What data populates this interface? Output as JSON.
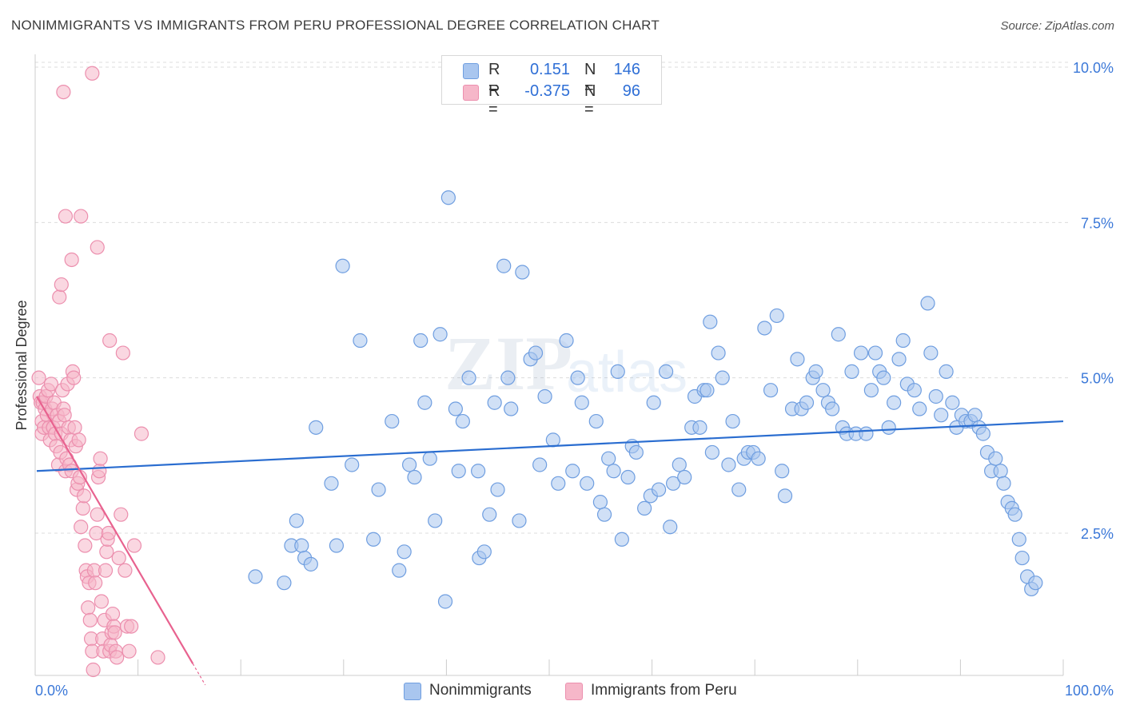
{
  "header": {
    "title": "NONIMMIGRANTS VS IMMIGRANTS FROM PERU PROFESSIONAL DEGREE CORRELATION CHART",
    "source": "Source: ZipAtlas.com"
  },
  "legend": {
    "rows": [
      {
        "swatch": "#a9c6ef",
        "r_label": "R =",
        "r_value": "0.151",
        "n_label": "N =",
        "n_value": "146"
      },
      {
        "swatch": "#f6b7c9",
        "r_label": "R =",
        "r_value": "-0.375",
        "n_label": "N =",
        "n_value": "96"
      }
    ]
  },
  "bottom_legend": {
    "items": [
      {
        "label": "Nonimmigrants",
        "color": "#a9c6ef"
      },
      {
        "label": "Immigrants from Peru",
        "color": "#f6b7c9"
      }
    ]
  },
  "colors": {
    "blue_fill": "#a9c6ef",
    "blue_stroke": "#6f9ee0",
    "blue_line": "#2a6dd0",
    "pink_fill": "#f6b7c9",
    "pink_stroke": "#ec8fae",
    "pink_line": "#e8628f",
    "tick_text": "#3b78d8",
    "grid": "#dcdcdc"
  },
  "chart_data": {
    "type": "scatter",
    "title": "NONIMMIGRANTS VS IMMIGRANTS FROM PERU PROFESSIONAL DEGREE CORRELATION CHART",
    "xlabel": "",
    "ylabel": "Professional Degree",
    "xlim": [
      0,
      100
    ],
    "ylim": [
      0,
      10
    ],
    "x_tick_labels": [
      "0.0%",
      "100.0%"
    ],
    "y_ticks": [
      2.5,
      5.0,
      7.5,
      10.0
    ],
    "y_tick_labels": [
      "2.5%",
      "5.0%",
      "7.5%",
      "10.0%"
    ],
    "grid": true,
    "legend_position": "bottom",
    "series": [
      {
        "name": "Nonimmigrants",
        "trend": {
          "x": [
            0,
            100
          ],
          "y": [
            3.5,
            4.3
          ]
        },
        "points": [
          [
            21.3,
            1.8
          ],
          [
            24.1,
            1.7
          ],
          [
            24.8,
            2.3
          ],
          [
            25.3,
            2.7
          ],
          [
            25.8,
            2.3
          ],
          [
            26.1,
            2.1
          ],
          [
            26.7,
            2.0
          ],
          [
            27.2,
            4.2
          ],
          [
            28.7,
            3.3
          ],
          [
            29.2,
            2.3
          ],
          [
            29.8,
            6.8
          ],
          [
            30.7,
            3.6
          ],
          [
            31.5,
            5.6
          ],
          [
            32.8,
            2.4
          ],
          [
            33.3,
            3.2
          ],
          [
            34.6,
            4.3
          ],
          [
            35.3,
            1.9
          ],
          [
            35.8,
            2.2
          ],
          [
            36.3,
            3.6
          ],
          [
            36.8,
            3.4
          ],
          [
            37.4,
            5.6
          ],
          [
            37.8,
            4.6
          ],
          [
            38.3,
            3.7
          ],
          [
            38.8,
            2.7
          ],
          [
            39.3,
            5.7
          ],
          [
            39.8,
            1.4
          ],
          [
            40.1,
            7.9
          ],
          [
            40.8,
            4.5
          ],
          [
            41.1,
            3.5
          ],
          [
            41.5,
            4.3
          ],
          [
            42.1,
            5.0
          ],
          [
            43.1,
            2.1
          ],
          [
            43.6,
            2.2
          ],
          [
            44.1,
            2.8
          ],
          [
            44.6,
            4.6
          ],
          [
            44.9,
            3.2
          ],
          [
            45.5,
            6.8
          ],
          [
            45.9,
            5.0
          ],
          [
            46.2,
            4.5
          ],
          [
            47.0,
            2.7
          ],
          [
            47.3,
            6.7
          ],
          [
            48.1,
            5.3
          ],
          [
            48.6,
            5.4
          ],
          [
            49.0,
            3.6
          ],
          [
            49.5,
            4.7
          ],
          [
            50.3,
            4.0
          ],
          [
            50.8,
            3.3
          ],
          [
            51.6,
            5.6
          ],
          [
            52.2,
            3.5
          ],
          [
            52.7,
            5.0
          ],
          [
            53.1,
            4.6
          ],
          [
            53.6,
            3.3
          ],
          [
            54.5,
            4.3
          ],
          [
            54.9,
            3.0
          ],
          [
            55.3,
            2.8
          ],
          [
            55.7,
            3.7
          ],
          [
            56.2,
            3.5
          ],
          [
            56.6,
            5.1
          ],
          [
            57.0,
            2.4
          ],
          [
            57.6,
            3.4
          ],
          [
            58.0,
            3.9
          ],
          [
            58.4,
            3.8
          ],
          [
            59.2,
            2.9
          ],
          [
            59.8,
            3.1
          ],
          [
            60.1,
            4.6
          ],
          [
            60.6,
            3.2
          ],
          [
            61.3,
            5.1
          ],
          [
            61.7,
            2.6
          ],
          [
            62.0,
            3.3
          ],
          [
            62.6,
            3.6
          ],
          [
            63.1,
            3.4
          ],
          [
            63.8,
            4.2
          ],
          [
            64.1,
            4.7
          ],
          [
            64.6,
            4.2
          ],
          [
            65.0,
            4.8
          ],
          [
            65.3,
            4.8
          ],
          [
            65.8,
            3.8
          ],
          [
            66.4,
            5.4
          ],
          [
            66.8,
            5.0
          ],
          [
            67.4,
            3.6
          ],
          [
            67.8,
            4.3
          ],
          [
            68.4,
            3.2
          ],
          [
            68.9,
            3.7
          ],
          [
            69.3,
            3.8
          ],
          [
            69.8,
            3.8
          ],
          [
            70.3,
            3.7
          ],
          [
            70.9,
            5.8
          ],
          [
            71.5,
            4.8
          ],
          [
            72.1,
            6.0
          ],
          [
            72.6,
            3.5
          ],
          [
            72.9,
            3.1
          ],
          [
            73.6,
            4.5
          ],
          [
            74.1,
            5.3
          ],
          [
            74.5,
            4.5
          ],
          [
            75.0,
            4.6
          ],
          [
            75.6,
            5.0
          ],
          [
            75.9,
            5.1
          ],
          [
            76.6,
            4.8
          ],
          [
            77.1,
            4.6
          ],
          [
            77.5,
            4.5
          ],
          [
            78.1,
            5.7
          ],
          [
            78.5,
            4.2
          ],
          [
            78.9,
            4.1
          ],
          [
            79.4,
            5.1
          ],
          [
            79.8,
            4.1
          ],
          [
            80.3,
            5.4
          ],
          [
            80.8,
            4.1
          ],
          [
            81.3,
            4.8
          ],
          [
            81.7,
            5.4
          ],
          [
            82.1,
            5.1
          ],
          [
            82.5,
            5.0
          ],
          [
            83.0,
            4.2
          ],
          [
            83.5,
            4.6
          ],
          [
            84.0,
            5.3
          ],
          [
            84.4,
            5.6
          ],
          [
            84.8,
            4.9
          ],
          [
            85.5,
            4.8
          ],
          [
            86.0,
            4.5
          ],
          [
            86.8,
            6.2
          ],
          [
            87.1,
            5.4
          ],
          [
            87.6,
            4.7
          ],
          [
            88.1,
            4.4
          ],
          [
            88.6,
            5.1
          ],
          [
            89.2,
            4.6
          ],
          [
            89.6,
            4.2
          ],
          [
            90.1,
            4.4
          ],
          [
            90.5,
            4.3
          ],
          [
            91.0,
            4.3
          ],
          [
            91.4,
            4.4
          ],
          [
            91.8,
            4.2
          ],
          [
            92.2,
            4.1
          ],
          [
            92.6,
            3.8
          ],
          [
            93.0,
            3.5
          ],
          [
            93.4,
            3.7
          ],
          [
            93.9,
            3.5
          ],
          [
            94.2,
            3.3
          ],
          [
            94.6,
            3.0
          ],
          [
            95.0,
            2.9
          ],
          [
            95.3,
            2.8
          ],
          [
            95.7,
            2.4
          ],
          [
            96.0,
            2.1
          ],
          [
            96.5,
            1.8
          ],
          [
            96.9,
            1.6
          ],
          [
            97.3,
            1.7
          ],
          [
            65.6,
            5.9
          ],
          [
            43.0,
            3.5
          ]
        ]
      },
      {
        "name": "Immigrants from Peru",
        "trend": {
          "x": [
            0,
            15.2
          ],
          "y": [
            4.7,
            0.4
          ]
        },
        "points": [
          [
            0.2,
            5.0
          ],
          [
            0.3,
            4.7
          ],
          [
            0.4,
            4.6
          ],
          [
            0.5,
            4.3
          ],
          [
            0.5,
            4.1
          ],
          [
            0.6,
            4.6
          ],
          [
            0.7,
            4.2
          ],
          [
            0.8,
            4.5
          ],
          [
            0.9,
            4.7
          ],
          [
            1.0,
            4.4
          ],
          [
            1.1,
            4.8
          ],
          [
            1.2,
            4.2
          ],
          [
            1.3,
            4.0
          ],
          [
            1.4,
            4.9
          ],
          [
            1.5,
            4.5
          ],
          [
            1.6,
            4.2
          ],
          [
            1.7,
            4.6
          ],
          [
            1.8,
            4.1
          ],
          [
            1.9,
            3.9
          ],
          [
            2.0,
            4.4
          ],
          [
            2.1,
            3.6
          ],
          [
            2.2,
            4.3
          ],
          [
            2.3,
            3.8
          ],
          [
            2.4,
            4.1
          ],
          [
            2.5,
            4.8
          ],
          [
            2.6,
            4.5
          ],
          [
            2.7,
            4.4
          ],
          [
            2.8,
            3.5
          ],
          [
            2.9,
            3.7
          ],
          [
            3.0,
            4.9
          ],
          [
            3.1,
            4.2
          ],
          [
            3.2,
            3.6
          ],
          [
            3.3,
            4.0
          ],
          [
            3.4,
            3.5
          ],
          [
            3.5,
            5.1
          ],
          [
            3.6,
            5.0
          ],
          [
            3.7,
            4.2
          ],
          [
            3.8,
            3.9
          ],
          [
            3.9,
            3.2
          ],
          [
            4.0,
            3.3
          ],
          [
            4.1,
            4.0
          ],
          [
            4.2,
            3.4
          ],
          [
            4.3,
            2.6
          ],
          [
            4.5,
            2.9
          ],
          [
            4.6,
            3.1
          ],
          [
            4.7,
            2.3
          ],
          [
            4.8,
            1.9
          ],
          [
            4.9,
            1.8
          ],
          [
            5.0,
            1.3
          ],
          [
            5.1,
            1.7
          ],
          [
            5.2,
            1.1
          ],
          [
            5.3,
            0.8
          ],
          [
            5.4,
            0.6
          ],
          [
            5.5,
            0.3
          ],
          [
            5.6,
            1.9
          ],
          [
            5.7,
            1.7
          ],
          [
            5.8,
            2.5
          ],
          [
            5.9,
            2.8
          ],
          [
            6.0,
            3.4
          ],
          [
            6.1,
            3.5
          ],
          [
            6.2,
            3.7
          ],
          [
            6.3,
            1.4
          ],
          [
            6.4,
            0.8
          ],
          [
            6.5,
            0.6
          ],
          [
            6.6,
            1.1
          ],
          [
            6.7,
            1.9
          ],
          [
            6.8,
            2.2
          ],
          [
            6.9,
            2.4
          ],
          [
            7.0,
            2.5
          ],
          [
            7.1,
            0.6
          ],
          [
            7.2,
            0.7
          ],
          [
            7.3,
            0.9
          ],
          [
            7.4,
            1.2
          ],
          [
            7.5,
            1.0
          ],
          [
            7.6,
            0.9
          ],
          [
            7.7,
            0.6
          ],
          [
            7.8,
            0.5
          ],
          [
            8.0,
            2.1
          ],
          [
            8.2,
            2.8
          ],
          [
            8.4,
            5.4
          ],
          [
            8.6,
            1.9
          ],
          [
            8.8,
            1.0
          ],
          [
            9.0,
            0.6
          ],
          [
            9.2,
            1.0
          ],
          [
            9.5,
            2.3
          ],
          [
            10.2,
            4.1
          ],
          [
            11.8,
            0.5
          ],
          [
            2.2,
            6.3
          ],
          [
            2.4,
            6.5
          ],
          [
            2.6,
            9.6
          ],
          [
            2.8,
            7.6
          ],
          [
            3.4,
            6.9
          ],
          [
            4.3,
            7.6
          ],
          [
            5.4,
            9.9
          ],
          [
            5.9,
            7.1
          ],
          [
            7.1,
            5.6
          ]
        ]
      }
    ]
  }
}
